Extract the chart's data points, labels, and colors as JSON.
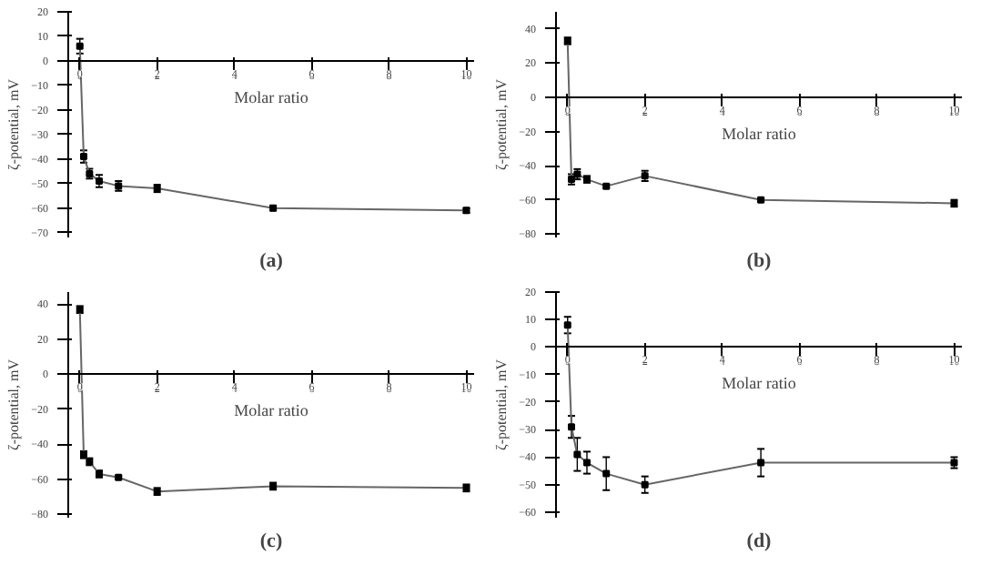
{
  "chart_data": [
    {
      "type": "line",
      "xlabel": "Molar ratio",
      "ylabel": "ζ-potential, mV",
      "annotations": [
        "(a)"
      ],
      "x": [
        0,
        0.1,
        0.25,
        0.5,
        1,
        2,
        5,
        10
      ],
      "xlim": [
        -0.3,
        10.2
      ],
      "xticks": [
        0,
        2,
        4,
        6,
        8,
        10
      ],
      "ylim": [
        -72,
        20
      ],
      "yticks": [
        -70,
        -60,
        -50,
        -40,
        -30,
        -20,
        -10,
        0,
        10,
        20
      ],
      "grid": false,
      "marker": "square",
      "line_style": "solid",
      "series": [
        {
          "color": "#666666",
          "values": [
            6,
            -39,
            -46,
            -49,
            -51,
            -52,
            -60,
            -61
          ],
          "errors": [
            3,
            2.5,
            2,
            2.5,
            2,
            1.5,
            1,
            1
          ]
        }
      ]
    },
    {
      "type": "line",
      "xlabel": "Molar ratio",
      "ylabel": "ζ-potential, mV",
      "annotations": [
        "(b)"
      ],
      "x": [
        0,
        0.1,
        0.25,
        0.5,
        1,
        2,
        5,
        10
      ],
      "xlim": [
        -0.3,
        10.2
      ],
      "xticks": [
        0,
        2,
        4,
        6,
        8,
        10
      ],
      "ylim": [
        -82,
        50
      ],
      "yticks": [
        -80,
        -60,
        -40,
        -20,
        0,
        20,
        40
      ],
      "grid": false,
      "marker": "square",
      "line_style": "solid",
      "series": [
        {
          "color": "#666666",
          "values": [
            33,
            -48,
            -45,
            -48,
            -52,
            -46,
            -60,
            -62
          ],
          "errors": [
            2,
            3,
            3,
            2,
            1,
            3,
            1,
            2
          ]
        }
      ]
    },
    {
      "type": "line",
      "xlabel": "Molar ratio",
      "ylabel": "ζ-potential, mV",
      "annotations": [
        "(c)"
      ],
      "x": [
        0,
        0.1,
        0.25,
        0.5,
        1,
        2,
        5,
        10
      ],
      "xlim": [
        -0.3,
        10.2
      ],
      "xticks": [
        0,
        2,
        4,
        6,
        8,
        10
      ],
      "ylim": [
        -82,
        47
      ],
      "yticks": [
        -80,
        -60,
        -40,
        -20,
        0,
        20,
        40
      ],
      "grid": false,
      "marker": "square",
      "line_style": "solid",
      "series": [
        {
          "color": "#666666",
          "values": [
            37,
            -46,
            -50,
            -57,
            -59,
            -67,
            -64,
            -65
          ],
          "errors": [
            2,
            2,
            2,
            2,
            1,
            2,
            2,
            2
          ]
        }
      ]
    },
    {
      "type": "line",
      "xlabel": "Molar ratio",
      "ylabel": "ζ-potential, mV",
      "annotations": [
        "(d)"
      ],
      "x": [
        0,
        0.1,
        0.25,
        0.5,
        1,
        2,
        5,
        10
      ],
      "xlim": [
        -0.3,
        10.2
      ],
      "xticks": [
        0,
        2,
        4,
        6,
        8,
        10
      ],
      "ylim": [
        -62,
        20
      ],
      "yticks": [
        -60,
        -50,
        -40,
        -30,
        -20,
        -10,
        0,
        10,
        20
      ],
      "grid": false,
      "marker": "square",
      "line_style": "solid",
      "series": [
        {
          "color": "#666666",
          "values": [
            8,
            -29,
            -39,
            -42,
            -46,
            -50,
            -42,
            -42
          ],
          "errors": [
            3,
            4,
            6,
            4,
            6,
            3,
            5,
            2
          ]
        }
      ]
    }
  ]
}
